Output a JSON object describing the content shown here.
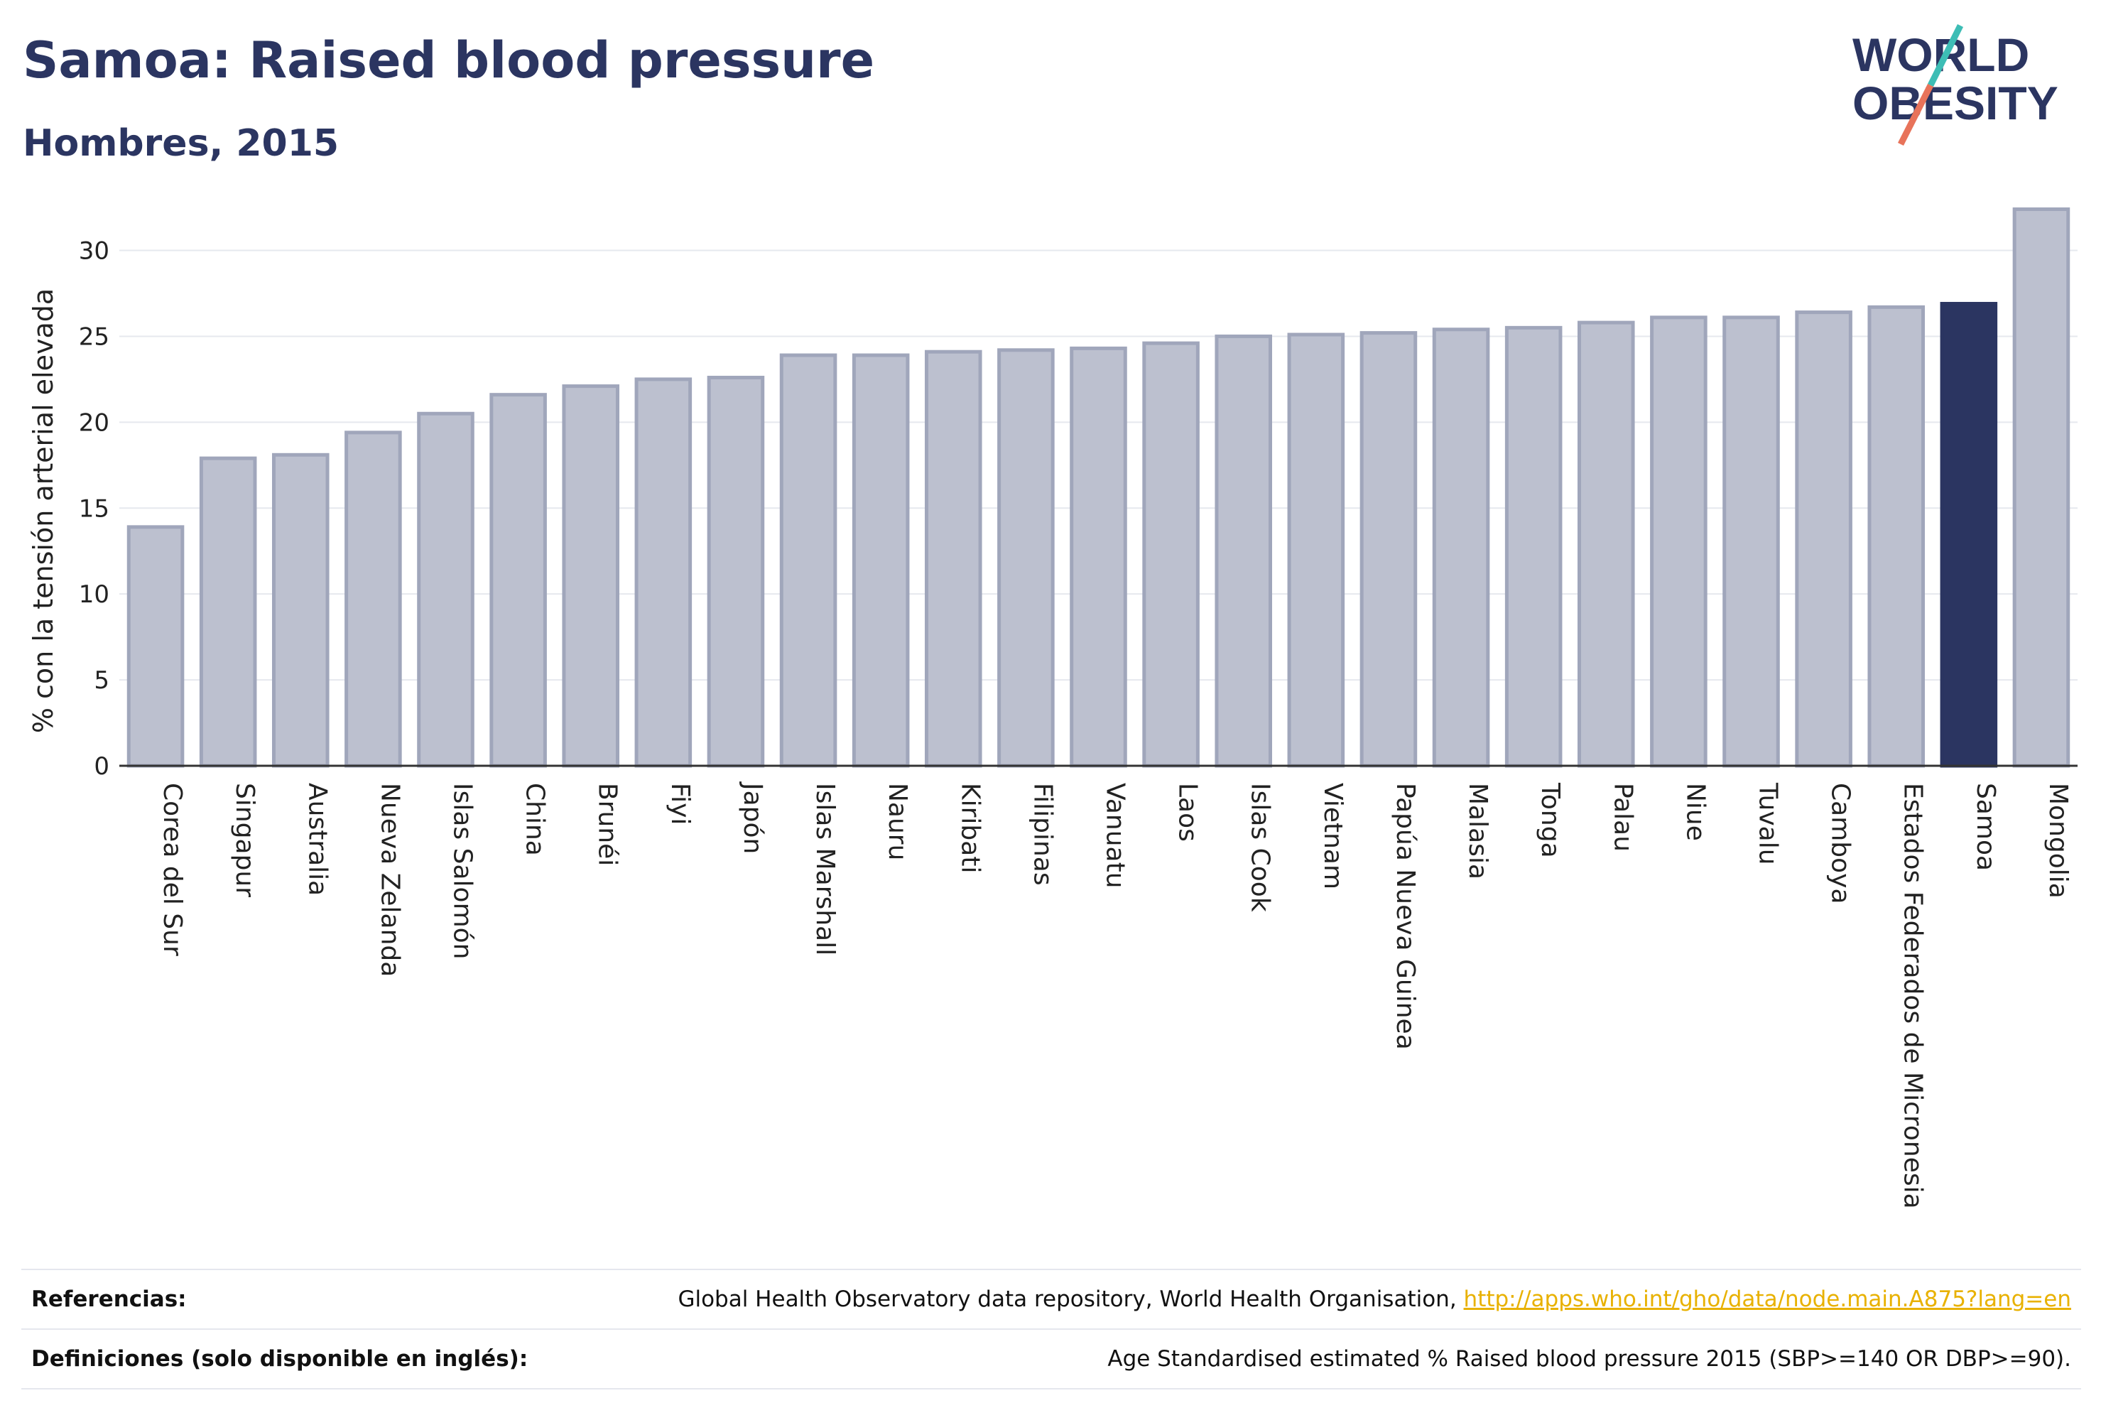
{
  "header": {
    "title": "Samoa: Raised blood pressure",
    "subtitle": "Hombres, 2015"
  },
  "logo": {
    "line1": "WORLD",
    "line2": "OBESITY",
    "colors": {
      "text": "#2b3561",
      "slash_top": "#3dbdb5",
      "slash_bottom": "#e8735a"
    }
  },
  "colors": {
    "bar": "#bcc0cf",
    "bar_stroke": "#a0a6bb",
    "highlight": "#2b3561",
    "axis": "#333333",
    "grid": "#e6e8ee"
  },
  "chart_data": {
    "type": "bar",
    "title": "",
    "xlabel": "",
    "ylabel": "% con la tensión arterial elevada",
    "ylim": [
      0,
      33
    ],
    "yticks": [
      0,
      5,
      10,
      15,
      20,
      25,
      30
    ],
    "grid": true,
    "highlight": "Samoa",
    "categories": [
      "Corea del Sur",
      "Singapur",
      "Australia",
      "Nueva Zelanda",
      "Islas Salomón",
      "China",
      "Brunéi",
      "Fiyi",
      "Japón",
      "Islas Marshall",
      "Nauru",
      "Kiribati",
      "Filipinas",
      "Vanuatu",
      "Laos",
      "Islas Cook",
      "Vietnam",
      "Papúa Nueva Guinea",
      "Malasia",
      "Tonga",
      "Palau",
      "Niue",
      "Tuvalu",
      "Camboya",
      "Estados Federados de Micronesia",
      "Samoa",
      "Mongolia"
    ],
    "values": [
      13.9,
      17.9,
      18.1,
      19.4,
      20.5,
      21.6,
      22.1,
      22.5,
      22.6,
      23.9,
      23.9,
      24.1,
      24.2,
      24.3,
      24.6,
      25.0,
      25.1,
      25.2,
      25.4,
      25.5,
      25.8,
      26.1,
      26.1,
      26.4,
      26.7,
      26.9,
      32.4
    ]
  },
  "references": {
    "label": "Referencias:",
    "source": "Global Health Observatory data repository, World Health Organisation, ",
    "link": "http://apps.who.int/gho/data/node.main.A875?lang=en"
  },
  "definitions": {
    "label": "Definiciones (solo disponible en inglés):",
    "text": "Age Standardised estimated % Raised blood pressure 2015 (SBP>=140 OR DBP>=90)."
  }
}
